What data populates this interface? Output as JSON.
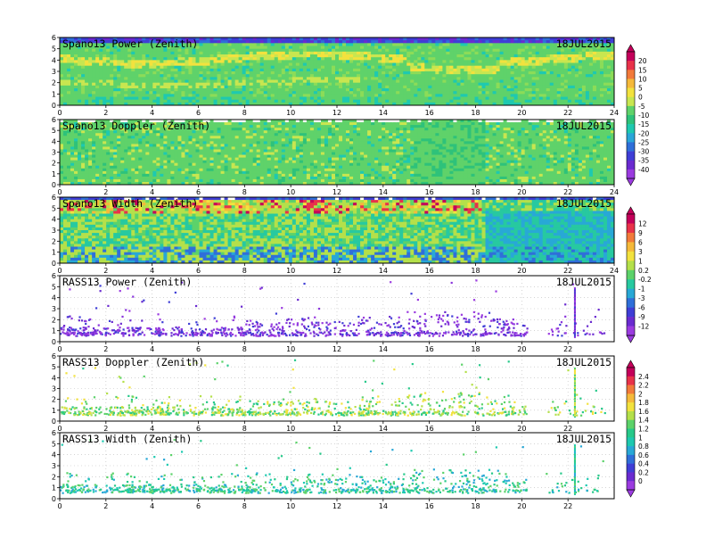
{
  "chart_data": [
    {
      "type": "heatmap",
      "title": "Spano13 Power (Zenith)",
      "date": "18JUL2015",
      "xlim": [
        0,
        24
      ],
      "ylim": [
        0,
        6
      ],
      "xticks": [
        "0",
        "2",
        "4",
        "6",
        "8",
        "10",
        "12",
        "14",
        "16",
        "18",
        "20",
        "22",
        "24"
      ],
      "yticks": [
        "0",
        "1",
        "2",
        "3",
        "4",
        "5",
        "6"
      ],
      "colorbar": {
        "group": "a",
        "labels": [
          "20",
          "15",
          "10",
          "5",
          "0",
          "-5",
          "-10",
          "-15",
          "-20",
          "-25",
          "-30",
          "-35",
          "-40"
        ]
      }
    },
    {
      "type": "heatmap",
      "title": "Spano13 Doppler (Zenith)",
      "date": "18JUL2015",
      "xlim": [
        0,
        24
      ],
      "ylim": [
        0,
        6
      ],
      "xticks": [
        "0",
        "2",
        "4",
        "6",
        "8",
        "10",
        "12",
        "14",
        "16",
        "18",
        "20",
        "22",
        "24"
      ],
      "yticks": [
        "0",
        "1",
        "2",
        "3",
        "4",
        "5",
        "6"
      ],
      "colorbar": {
        "group": "a"
      }
    },
    {
      "type": "heatmap",
      "title": "Spano13 Width (Zenith)",
      "date": "18JUL2015",
      "xlim": [
        0,
        24
      ],
      "ylim": [
        0,
        6
      ],
      "xticks": [
        "0",
        "2",
        "4",
        "6",
        "8",
        "10",
        "12",
        "14",
        "16",
        "18",
        "20",
        "22",
        "24"
      ],
      "yticks": [
        "0",
        "1",
        "2",
        "3",
        "4",
        "5",
        "6"
      ],
      "colorbar": {
        "group": "b",
        "labels": [
          "12",
          "9",
          "6",
          "3",
          "1",
          "0.2",
          "-0.2",
          "-1",
          "-3",
          "-6",
          "-9",
          "-12"
        ]
      }
    },
    {
      "type": "scatter",
      "title": "RASS13 Power (Zenith)",
      "date": "18JUL2015",
      "xlim": [
        0,
        24
      ],
      "ylim": [
        0,
        6
      ],
      "xticks": [
        "0",
        "2",
        "4",
        "6",
        "8",
        "10",
        "12",
        "14",
        "16",
        "18",
        "20",
        "22"
      ],
      "yticks": [
        "0",
        "1",
        "2",
        "3",
        "4",
        "5",
        "6"
      ],
      "colorbar": {
        "group": "b"
      }
    },
    {
      "type": "scatter",
      "title": "RASS13 Doppler (Zenith)",
      "date": "18JUL2015",
      "xlim": [
        0,
        24
      ],
      "ylim": [
        0,
        6
      ],
      "xticks": [
        "0",
        "2",
        "4",
        "6",
        "8",
        "10",
        "12",
        "14",
        "16",
        "18",
        "20",
        "22"
      ],
      "yticks": [
        "0",
        "1",
        "2",
        "3",
        "4",
        "5",
        "6"
      ],
      "colorbar": {
        "group": "c",
        "labels": [
          "2.4",
          "2.2",
          "2",
          "1.8",
          "1.6",
          "1.4",
          "1.2",
          "1",
          "0.8",
          "0.6",
          "0.4",
          "0.2",
          "0"
        ]
      }
    },
    {
      "type": "scatter",
      "title": "RASS13 Width (Zenith)",
      "date": "18JUL2015",
      "xlim": [
        0,
        24
      ],
      "ylim": [
        0,
        6
      ],
      "xticks": [
        "0",
        "2",
        "4",
        "6",
        "8",
        "10",
        "12",
        "14",
        "16",
        "18",
        "20",
        "22"
      ],
      "yticks": [
        "0",
        "1",
        "2",
        "3",
        "4",
        "5",
        "6"
      ],
      "colorbar": {
        "group": "c"
      }
    }
  ]
}
